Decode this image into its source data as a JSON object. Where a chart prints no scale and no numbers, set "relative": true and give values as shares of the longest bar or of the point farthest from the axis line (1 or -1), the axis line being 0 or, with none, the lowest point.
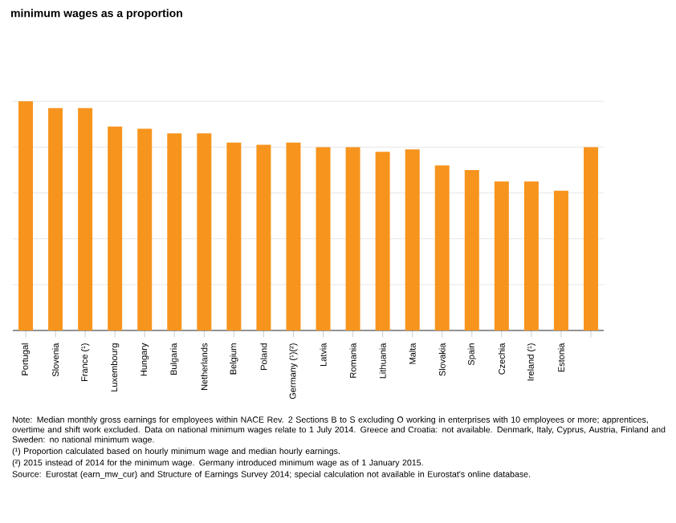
{
  "chart_data": {
    "type": "bar",
    "title": "minimum wages as a proportion",
    "categories": [
      "Portugal",
      "Slovenia",
      "France (¹)",
      "Luxembourg",
      "Hungary",
      "Bulgaria",
      "Netherlands",
      "Belgium",
      "Poland",
      "Germany (¹)(²)",
      "Latvia",
      "Romania",
      "Lithuania",
      "Malta",
      "Slovakia",
      "Spain",
      "Czechia",
      "Ireland (¹)",
      "Estonia",
      null
    ],
    "values": [
      1,
      0.97,
      0.97,
      0.89,
      0.88,
      0.86,
      0.86,
      0.82,
      0.81,
      0.82,
      0.8,
      0.8,
      0.78,
      0.79,
      0.72,
      0.7,
      0.65,
      0.65,
      0.61,
      0.8
    ],
    "color": "#f7941d",
    "relative": true,
    "grid": "y",
    "annotations": [
      "Note: Median monthly gross earnings for employees within NACE Rev. 2 Sections B to S excluding O working in enterprises with 10 employees or more; apprentices, overtime and shift work excluded. Data on national minimum wages relate to 1 July 2014. Greece and Croatia: not available. Denmark, Italy, Cyprus, Austria, Finland and Sweden: no national minimum wage.",
      "(¹) Proportion calculated based on hourly minimum wage and median hourly earnings.",
      "(²) 2015 instead of 2014 for the minimum wage. Germany introduced minimum wage as of 1 January 2015.",
      "Source: Eurostat (earn_mw_cur) and Structure of Earnings Survey 2014; special calculation not available in Eurostat's online database."
    ]
  }
}
